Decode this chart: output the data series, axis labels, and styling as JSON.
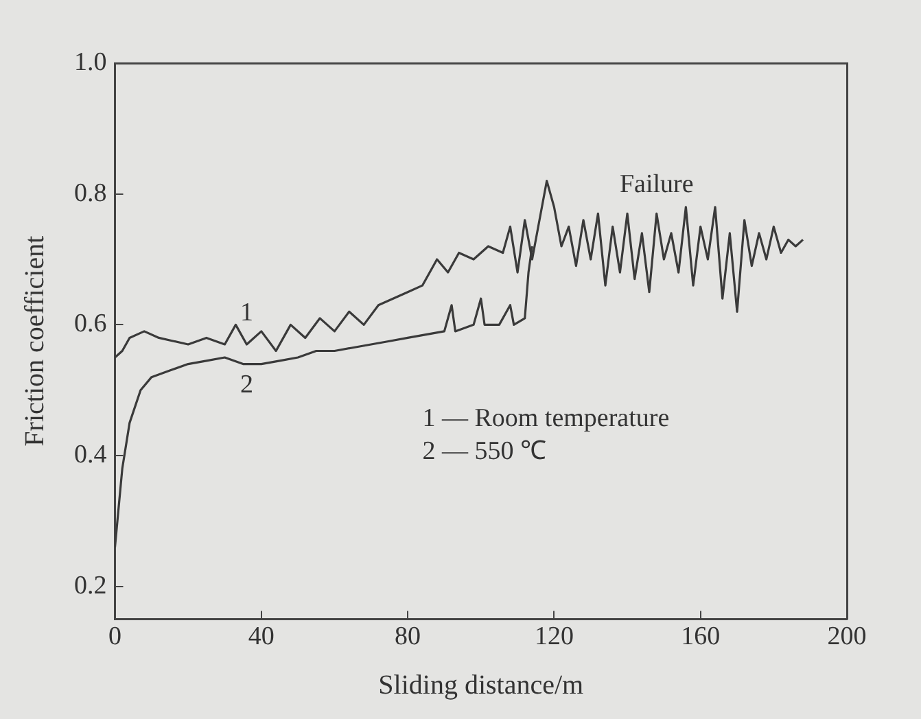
{
  "chart_data": {
    "type": "line",
    "xlabel": "Sliding distance/m",
    "ylabel": "Friction coefficient",
    "xlim": [
      0,
      200
    ],
    "xticks": [
      0,
      40,
      80,
      120,
      160,
      200
    ],
    "ylim": [
      0.15,
      1.0
    ],
    "yticks": [
      0.2,
      0.4,
      0.6,
      0.8,
      {
        "value": 1.0,
        "label": "1.0"
      }
    ],
    "grid": false,
    "legend": false,
    "marker": "none",
    "line_style": "solid",
    "series": [
      {
        "color": "#3a3a3a",
        "x": [
          0,
          2,
          4,
          8,
          12,
          16,
          20,
          25,
          30,
          33,
          36,
          40,
          44,
          48,
          52,
          56,
          60,
          64,
          68,
          72,
          76,
          80,
          84,
          88,
          91,
          94,
          98,
          102,
          106,
          108,
          110,
          112,
          114,
          116,
          118,
          120,
          122,
          124,
          126,
          128,
          130,
          132,
          134,
          136,
          138,
          140,
          142,
          144,
          146,
          148,
          150,
          152,
          154,
          156,
          158,
          160,
          162,
          164,
          166,
          168,
          170,
          172,
          174,
          176,
          178,
          180,
          182,
          184,
          186,
          188
        ],
        "values": [
          0.55,
          0.56,
          0.58,
          0.59,
          0.58,
          0.575,
          0.57,
          0.58,
          0.57,
          0.6,
          0.57,
          0.59,
          0.56,
          0.6,
          0.58,
          0.61,
          0.59,
          0.62,
          0.6,
          0.63,
          0.64,
          0.65,
          0.66,
          0.7,
          0.68,
          0.71,
          0.7,
          0.72,
          0.71,
          0.75,
          0.68,
          0.76,
          0.7,
          0.76,
          0.82,
          0.78,
          0.72,
          0.75,
          0.69,
          0.76,
          0.7,
          0.77,
          0.66,
          0.75,
          0.68,
          0.77,
          0.67,
          0.74,
          0.65,
          0.77,
          0.7,
          0.74,
          0.68,
          0.78,
          0.66,
          0.75,
          0.7,
          0.78,
          0.64,
          0.74,
          0.62,
          0.76,
          0.69,
          0.74,
          0.7,
          0.75,
          0.71,
          0.73,
          0.72,
          0.73
        ]
      },
      {
        "color": "#3a3a3a",
        "x": [
          0,
          2,
          4,
          7,
          10,
          15,
          20,
          25,
          30,
          35,
          40,
          45,
          50,
          55,
          60,
          65,
          70,
          75,
          80,
          85,
          90,
          92,
          93,
          98,
          100,
          101,
          105,
          108,
          109,
          112,
          113,
          114
        ],
        "values": [
          0.26,
          0.38,
          0.45,
          0.5,
          0.52,
          0.53,
          0.54,
          0.545,
          0.55,
          0.54,
          0.54,
          0.545,
          0.55,
          0.56,
          0.56,
          0.565,
          0.57,
          0.575,
          0.58,
          0.585,
          0.59,
          0.63,
          0.59,
          0.6,
          0.64,
          0.6,
          0.6,
          0.63,
          0.6,
          0.61,
          0.68,
          0.72
        ]
      }
    ],
    "annotations": [
      "1",
      "2",
      "Failure",
      "1 — Room temperature",
      "2 — 550 ℃"
    ]
  }
}
